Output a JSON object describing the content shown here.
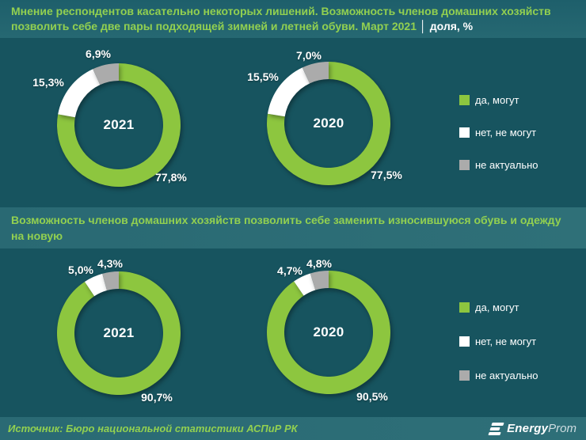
{
  "header": {
    "title_main": "Мнение респондентов касательно некоторых лишений. Возможность членов домашних хозяйств позволить себе две пары подходящей зимней и летней обуви. Март 2021",
    "separator": "│",
    "title_unit": "доля, %"
  },
  "section2": {
    "title": "Возможность членов домашних хозяйств позволить себе заменить износившуюся обувь и одежду на новую"
  },
  "legend": {
    "items": [
      {
        "label": "да, могут",
        "color": "#8dc63f"
      },
      {
        "label": "нет, не могут",
        "color": "#ffffff"
      },
      {
        "label": "не актуально",
        "color": "#ababab"
      }
    ]
  },
  "footer": {
    "source": "Источник: Бюро национальной статистики АСПиР РК",
    "logo_bold": "Energy",
    "logo_light": "Prom"
  },
  "colors": {
    "background": "#17545f",
    "band": "#2a6a74",
    "accent_green": "#92d050",
    "slice_green": "#8dc63f",
    "slice_white": "#ffffff",
    "slice_gray": "#ababab"
  },
  "chart_data": [
    {
      "type": "pie",
      "subtype": "donut",
      "group": "Возможность позволить себе две пары подходящей зимней и летней обуви",
      "center_label": "2021",
      "categories": [
        "да, могут",
        "нет, не могут",
        "не актуально"
      ],
      "values": [
        77.8,
        15.3,
        6.9
      ],
      "value_labels": [
        "77,8%",
        "15,3%",
        "6,9%"
      ],
      "colors": [
        "#8dc63f",
        "#ffffff",
        "#ababab"
      ],
      "start_angle": 0,
      "direction": "clockwise",
      "legend_position": "right"
    },
    {
      "type": "pie",
      "subtype": "donut",
      "group": "Возможность позволить себе две пары подходящей зимней и летней обуви",
      "center_label": "2020",
      "categories": [
        "да, могут",
        "нет, не могут",
        "не актуально"
      ],
      "values": [
        77.5,
        15.5,
        7.0
      ],
      "value_labels": [
        "77,5%",
        "15,5%",
        "7,0%"
      ],
      "colors": [
        "#8dc63f",
        "#ffffff",
        "#ababab"
      ],
      "start_angle": 0,
      "direction": "clockwise",
      "legend_position": "right"
    },
    {
      "type": "pie",
      "subtype": "donut",
      "group": "Возможность позволить себе заменить износившуюся обувь и одежду на новую",
      "center_label": "2021",
      "categories": [
        "да, могут",
        "нет, не могут",
        "не актуально"
      ],
      "values": [
        90.7,
        5.0,
        4.3
      ],
      "value_labels": [
        "90,7%",
        "5,0%",
        "4,3%"
      ],
      "colors": [
        "#8dc63f",
        "#ffffff",
        "#ababab"
      ],
      "start_angle": 0,
      "direction": "clockwise",
      "legend_position": "right"
    },
    {
      "type": "pie",
      "subtype": "donut",
      "group": "Возможность позволить себе заменить износившуюся обувь и одежду на новую",
      "center_label": "2020",
      "categories": [
        "да, могут",
        "нет, не могут",
        "не актуально"
      ],
      "values": [
        90.5,
        4.7,
        4.8
      ],
      "value_labels": [
        "90,5%",
        "4,7%",
        "4,8%"
      ],
      "colors": [
        "#8dc63f",
        "#ffffff",
        "#ababab"
      ],
      "start_angle": 0,
      "direction": "clockwise",
      "legend_position": "right"
    }
  ]
}
